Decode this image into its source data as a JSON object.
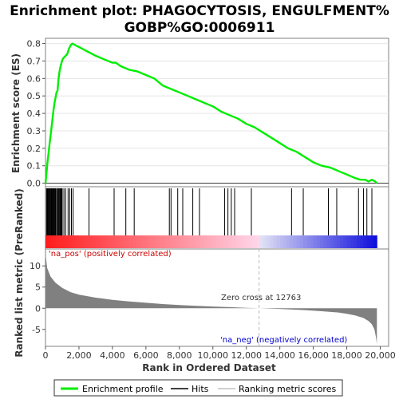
{
  "chart_data": {
    "type": "line",
    "title_line1": "Enrichment plot: PHAGOCYTOSIS, ENGULFMENT%",
    "title_line2": "GOBP%GO:0006911",
    "es_panel": {
      "ylabel": "Enrichment score (ES)",
      "ylim": [
        -0.02,
        0.83
      ],
      "yticks": [
        "0.0",
        "0.1",
        "0.2",
        "0.3",
        "0.4",
        "0.5",
        "0.6",
        "0.7",
        "0.8"
      ],
      "line_color": "#00ee00",
      "curve_x": [
        0,
        60,
        120,
        180,
        240,
        300,
        360,
        420,
        480,
        540,
        600,
        660,
        720,
        780,
        840,
        900,
        960,
        1020,
        1100,
        1200,
        1300,
        1400,
        1500,
        1600,
        1800,
        2000,
        2200,
        2400,
        2600,
        2800,
        3000,
        3500,
        4000,
        4200,
        4500,
        5000,
        5500,
        6000,
        6500,
        7000,
        7500,
        8000,
        8500,
        9000,
        9500,
        10000,
        10500,
        11000,
        11500,
        12000,
        12500,
        13000,
        13500,
        14000,
        14500,
        15000,
        15500,
        16000,
        16500,
        17000,
        17500,
        18000,
        18500,
        18800,
        19100,
        19300,
        19500,
        19700,
        19800
      ],
      "curve_es": [
        0.0,
        0.06,
        0.12,
        0.17,
        0.22,
        0.27,
        0.32,
        0.37,
        0.42,
        0.46,
        0.49,
        0.52,
        0.53,
        0.6,
        0.64,
        0.67,
        0.69,
        0.71,
        0.72,
        0.73,
        0.74,
        0.77,
        0.79,
        0.8,
        0.79,
        0.78,
        0.77,
        0.76,
        0.75,
        0.74,
        0.73,
        0.71,
        0.69,
        0.69,
        0.67,
        0.65,
        0.64,
        0.62,
        0.6,
        0.56,
        0.54,
        0.52,
        0.5,
        0.48,
        0.46,
        0.44,
        0.41,
        0.39,
        0.37,
        0.34,
        0.32,
        0.29,
        0.26,
        0.23,
        0.2,
        0.18,
        0.15,
        0.12,
        0.1,
        0.09,
        0.07,
        0.05,
        0.03,
        0.02,
        0.02,
        0.01,
        0.02,
        0.01,
        0.0
      ]
    },
    "hits_panel": {
      "hit_positions": [
        60,
        100,
        140,
        180,
        220,
        260,
        300,
        340,
        380,
        420,
        460,
        500,
        540,
        580,
        620,
        680,
        740,
        790,
        840,
        880,
        920,
        960,
        1000,
        1100,
        1200,
        1350,
        1450,
        1550,
        1650,
        2600,
        4100,
        4800,
        5300,
        7400,
        7500,
        7900,
        8200,
        8800,
        9200,
        10700,
        10900,
        11100,
        11300,
        12300,
        14700,
        15400,
        16900,
        17400,
        18700,
        19000,
        19200,
        19500
      ]
    },
    "rank_panel": {
      "ylabel": "Ranked list metric (PreRanked)",
      "xlabel": "Rank in Ordered Dataset",
      "ylim": [
        -9,
        14
      ],
      "yticks": [
        "10",
        "5",
        "0",
        "-5"
      ],
      "xticks": [
        "0",
        "2,000",
        "4,000",
        "6,000",
        "8,000",
        "10,000",
        "12,000",
        "14,000",
        "16,000",
        "18,000",
        "20,000"
      ],
      "xlim": [
        0,
        20500
      ],
      "total_genes": 19800,
      "metric_x": [
        0,
        100,
        300,
        600,
        1000,
        1500,
        2000,
        3000,
        4000,
        5000,
        6000,
        7000,
        8000,
        9000,
        10000,
        11000,
        12000,
        12763,
        13500,
        14500,
        15500,
        16500,
        17500,
        18000,
        18500,
        19000,
        19300,
        19500,
        19650,
        19750,
        19800
      ],
      "metric_y": [
        13,
        9.5,
        7.5,
        6,
        4.8,
        3.8,
        3.2,
        2.5,
        2.0,
        1.6,
        1.3,
        1.0,
        0.75,
        0.55,
        0.4,
        0.25,
        0.1,
        0.0,
        -0.1,
        -0.25,
        -0.45,
        -0.7,
        -1.0,
        -1.3,
        -1.7,
        -2.3,
        -3.0,
        -3.8,
        -5.0,
        -7.0,
        -8.5
      ],
      "zero_cross_label": "Zero cross at 12763",
      "zero_cross_value": 12763,
      "pos_label": "'na_pos' (positively correlated)",
      "neg_label": "'na_neg' (negatively correlated)",
      "fill_color": "#808080"
    },
    "legend": {
      "items": [
        {
          "label": "Enrichment profile",
          "color": "#00ee00"
        },
        {
          "label": "Hits",
          "color": "#000000"
        },
        {
          "label": "Ranking metric scores",
          "color": "#c0c0c0"
        }
      ]
    }
  }
}
